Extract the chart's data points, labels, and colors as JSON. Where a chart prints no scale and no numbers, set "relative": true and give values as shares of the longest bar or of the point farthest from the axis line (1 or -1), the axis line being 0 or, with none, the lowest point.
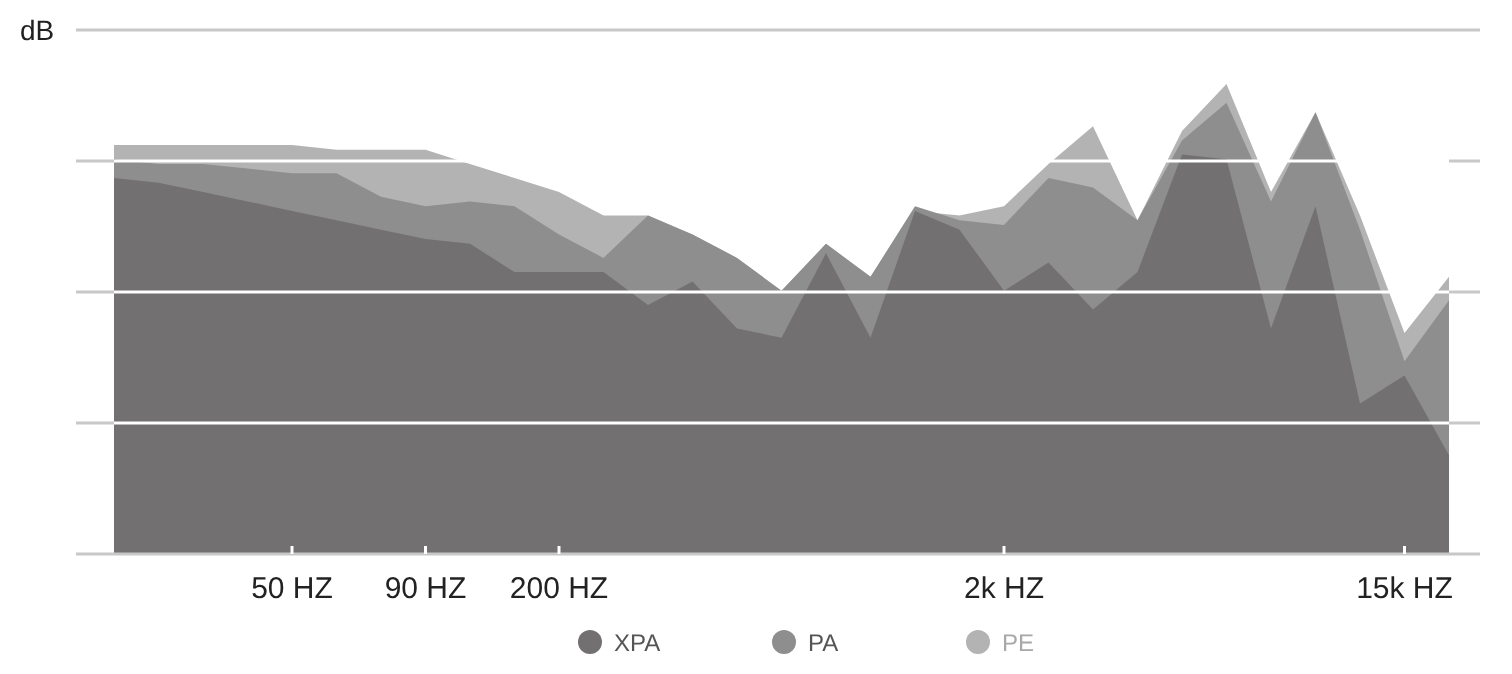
{
  "chart_data": {
    "type": "area",
    "relative": true,
    "ylabel": "dB",
    "categories": [
      null,
      null,
      null,
      null,
      "50 HZ",
      null,
      null,
      "90 HZ",
      null,
      null,
      "200 HZ",
      null,
      null,
      null,
      null,
      null,
      null,
      null,
      null,
      null,
      "2k HZ",
      null,
      null,
      null,
      null,
      null,
      null,
      null,
      null,
      "15k HZ",
      null
    ],
    "grid": "y",
    "legend": "bottom",
    "tick_labels": "x",
    "series": [
      {
        "name": "PE",
        "color": "#b3b3b3",
        "values": [
          0.87,
          0.87,
          0.87,
          0.87,
          0.87,
          0.86,
          0.86,
          0.86,
          0.83,
          0.8,
          0.77,
          0.72,
          0.72,
          0.68,
          0.63,
          0.56,
          0.66,
          0.59,
          0.73,
          0.72,
          0.74,
          0.83,
          0.91,
          0.71,
          0.9,
          1,
          0.77,
          0.94,
          0.72,
          0.47,
          0.59
        ]
      },
      {
        "name": "PA",
        "color": "#8e8e8e",
        "values": [
          0.84,
          0.83,
          0.83,
          0.82,
          0.81,
          0.81,
          0.76,
          0.74,
          0.75,
          0.74,
          0.68,
          0.63,
          0.72,
          0.68,
          0.63,
          0.56,
          0.66,
          0.59,
          0.74,
          0.71,
          0.7,
          0.8,
          0.78,
          0.71,
          0.88,
          0.96,
          0.75,
          0.94,
          0.69,
          0.41,
          0.54
        ]
      },
      {
        "name": "XPA",
        "color": "#737071",
        "values": [
          0.8,
          0.79,
          0.77,
          0.75,
          0.73,
          0.71,
          0.69,
          0.67,
          0.66,
          0.6,
          0.6,
          0.6,
          0.53,
          0.58,
          0.48,
          0.46,
          0.64,
          0.46,
          0.73,
          0.69,
          0.56,
          0.62,
          0.52,
          0.6,
          0.85,
          0.84,
          0.48,
          0.74,
          0.32,
          0.38,
          0.21
        ]
      }
    ]
  }
}
